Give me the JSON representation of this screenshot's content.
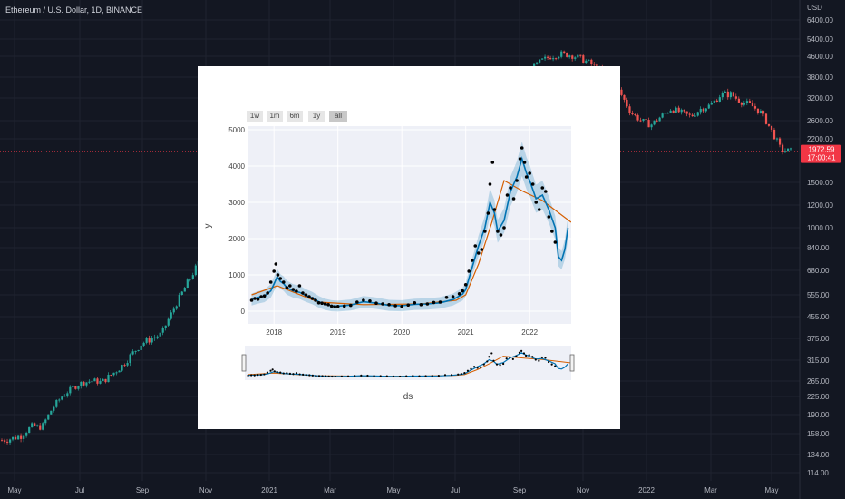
{
  "tv": {
    "title": "Ethereum / U.S. Dollar, 1D, BINANCE",
    "currency": "USD",
    "price_ticks": [
      "6400.00",
      "5400.00",
      "4600.00",
      "3800.00",
      "3200.00",
      "2600.00",
      "2200.00",
      "1500.00",
      "1200.00",
      "1000.00",
      "840.00",
      "680.00",
      "555.00",
      "455.00",
      "375.00",
      "315.00",
      "265.00",
      "225.00",
      "190.00",
      "158.00",
      "134.00",
      "114.00"
    ],
    "time_ticks": [
      "May",
      "Jul",
      "Sep",
      "Nov",
      "2021",
      "Mar",
      "May",
      "Jul",
      "Sep",
      "Nov",
      "2022",
      "Mar",
      "May"
    ],
    "last_price": "1972.59",
    "countdown": "17:00:41",
    "colors": {
      "background": "#131722",
      "up": "#26a69a",
      "down": "#ef5350",
      "last_price": "#f23645"
    },
    "price_path": [
      [
        0,
        150
      ],
      [
        1,
        152
      ],
      [
        2,
        156
      ],
      [
        3,
        170
      ],
      [
        4,
        168
      ],
      [
        5,
        200
      ],
      [
        6,
        225
      ],
      [
        7,
        245
      ],
      [
        8,
        260
      ],
      [
        9,
        265
      ],
      [
        10,
        262
      ],
      [
        11,
        280
      ],
      [
        12,
        300
      ],
      [
        13,
        330
      ],
      [
        14,
        360
      ],
      [
        15,
        375
      ],
      [
        16,
        390
      ],
      [
        17,
        470
      ],
      [
        18,
        560
      ],
      [
        19,
        650
      ],
      [
        20,
        760
      ],
      [
        21,
        980
      ],
      [
        22,
        1250
      ],
      [
        23,
        1500
      ],
      [
        24,
        1700
      ],
      [
        25,
        1950
      ],
      [
        26,
        1600
      ],
      [
        27,
        1750
      ],
      [
        28,
        1900
      ],
      [
        29,
        2150
      ],
      [
        30,
        2450
      ],
      [
        31,
        2700
      ],
      [
        32,
        3000
      ],
      [
        33,
        3400
      ],
      [
        34,
        4000
      ],
      [
        35,
        3500
      ],
      [
        36,
        2600
      ],
      [
        37,
        2500
      ],
      [
        38,
        2400
      ],
      [
        39,
        2200
      ],
      [
        40,
        2100
      ],
      [
        41,
        2000
      ],
      [
        42,
        1950
      ],
      [
        43,
        2300
      ],
      [
        44,
        2600
      ],
      [
        45,
        3000
      ],
      [
        46,
        3400
      ],
      [
        47,
        3300
      ],
      [
        48,
        3600
      ],
      [
        49,
        3800
      ],
      [
        50,
        3500
      ],
      [
        51,
        3400
      ],
      [
        52,
        3700
      ],
      [
        53,
        4100
      ],
      [
        54,
        4400
      ],
      [
        55,
        4600
      ],
      [
        56,
        4700
      ],
      [
        57,
        4650
      ],
      [
        58,
        4500
      ],
      [
        59,
        4300
      ],
      [
        60,
        4000
      ],
      [
        61,
        3700
      ],
      [
        62,
        3300
      ],
      [
        63,
        2800
      ],
      [
        64,
        2600
      ],
      [
        65,
        2500
      ],
      [
        66,
        2700
      ],
      [
        67,
        2900
      ],
      [
        68,
        2800
      ],
      [
        69,
        2700
      ],
      [
        70,
        2900
      ],
      [
        71,
        3000
      ],
      [
        72,
        3300
      ],
      [
        73,
        3300
      ],
      [
        74,
        3100
      ],
      [
        75,
        3000
      ],
      [
        76,
        2800
      ],
      [
        77,
        2400
      ],
      [
        78,
        2000
      ],
      [
        79,
        1972
      ]
    ]
  },
  "chart_data": {
    "type": "line",
    "title": "",
    "xlabel": "ds",
    "ylabel": "y",
    "y_ticks": [
      0,
      1000,
      2000,
      3000,
      4000,
      5000
    ],
    "x_ticks": [
      "2018",
      "2019",
      "2020",
      "2021",
      "2022"
    ],
    "x_range": [
      2017.6,
      2022.65
    ],
    "ylim": [
      -350,
      5100
    ],
    "range_selector": [
      "1w",
      "1m",
      "6m",
      "1y",
      "all"
    ],
    "range_selector_active": "all",
    "series": [
      {
        "kind": "actual",
        "color": "#000000",
        "x": [
          2017.65,
          2017.7,
          2017.75,
          2017.8,
          2017.85,
          2017.9,
          2017.95,
          2018.0,
          2018.03,
          2018.06,
          2018.1,
          2018.15,
          2018.2,
          2018.25,
          2018.3,
          2018.35,
          2018.4,
          2018.45,
          2018.5,
          2018.55,
          2018.6,
          2018.65,
          2018.7,
          2018.75,
          2018.8,
          2018.85,
          2018.9,
          2018.95,
          2019.0,
          2019.1,
          2019.2,
          2019.3,
          2019.4,
          2019.5,
          2019.6,
          2019.7,
          2019.8,
          2019.9,
          2020.0,
          2020.1,
          2020.2,
          2020.3,
          2020.4,
          2020.5,
          2020.6,
          2020.7,
          2020.8,
          2020.9,
          2020.95,
          2021.0,
          2021.05,
          2021.1,
          2021.15,
          2021.2,
          2021.25,
          2021.3,
          2021.35,
          2021.38,
          2021.42,
          2021.45,
          2021.5,
          2021.55,
          2021.6,
          2021.65,
          2021.7,
          2021.75,
          2021.8,
          2021.85,
          2021.88,
          2021.92,
          2021.95,
          2022.0,
          2022.05,
          2022.1,
          2022.15,
          2022.2,
          2022.25,
          2022.3,
          2022.35,
          2022.4
        ],
        "y": [
          300,
          350,
          330,
          400,
          420,
          500,
          800,
          1100,
          1300,
          1000,
          900,
          800,
          650,
          700,
          600,
          550,
          700,
          500,
          450,
          400,
          350,
          300,
          230,
          220,
          200,
          180,
          140,
          120,
          130,
          140,
          160,
          250,
          300,
          280,
          220,
          200,
          180,
          150,
          130,
          170,
          230,
          180,
          200,
          240,
          250,
          380,
          400,
          480,
          560,
          730,
          1100,
          1400,
          1800,
          1600,
          1700,
          2200,
          2700,
          3500,
          4100,
          2800,
          2200,
          2100,
          2300,
          3200,
          3400,
          3100,
          3600,
          4200,
          4500,
          4100,
          3700,
          3800,
          3500,
          3000,
          2800,
          3400,
          3300,
          2600,
          2200,
          1900
        ]
      },
      {
        "kind": "forecast",
        "color": "#0072b2",
        "x": [
          2017.65,
          2017.75,
          2017.85,
          2017.95,
          2018.0,
          2018.05,
          2018.1,
          2018.15,
          2018.2,
          2018.3,
          2018.4,
          2018.5,
          2018.6,
          2018.7,
          2018.8,
          2018.9,
          2019.0,
          2019.2,
          2019.4,
          2019.6,
          2019.8,
          2020.0,
          2020.2,
          2020.4,
          2020.6,
          2020.8,
          2020.95,
          2021.0,
          2021.1,
          2021.2,
          2021.3,
          2021.38,
          2021.45,
          2021.5,
          2021.6,
          2021.7,
          2021.8,
          2021.88,
          2021.95,
          2022.0,
          2022.1,
          2022.2,
          2022.3,
          2022.4,
          2022.45,
          2022.5,
          2022.55,
          2022.6
        ],
        "y": [
          320,
          380,
          420,
          560,
          750,
          950,
          820,
          760,
          650,
          560,
          520,
          430,
          360,
          260,
          190,
          150,
          140,
          170,
          260,
          220,
          160,
          150,
          190,
          200,
          230,
          320,
          470,
          600,
          1200,
          1800,
          2300,
          3000,
          2700,
          2200,
          2500,
          3300,
          3700,
          4200,
          3800,
          3600,
          3100,
          3200,
          2800,
          2300,
          1500,
          1400,
          1700,
          2300
        ]
      },
      {
        "kind": "trend",
        "color": "#d55e00",
        "x": [
          2017.65,
          2018.05,
          2018.7,
          2019.4,
          2020.3,
          2020.85,
          2021.0,
          2021.2,
          2021.4,
          2021.6,
          2021.9,
          2022.2,
          2022.65
        ],
        "y": [
          450,
          700,
          250,
          180,
          200,
          300,
          450,
          1300,
          2400,
          3600,
          3300,
          3050,
          2450
        ]
      }
    ]
  }
}
